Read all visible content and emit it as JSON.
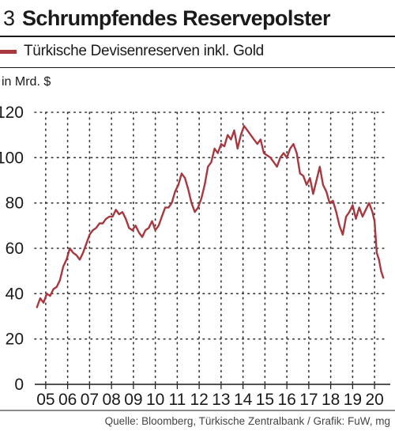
{
  "header": {
    "number": "3",
    "title": "Schrumpfendes Reservepolster"
  },
  "footer": {
    "source": "Quelle: Bloomberg, Türkische Zentralbank / Grafik: FuW, mg"
  },
  "colors": {
    "series": "#a8383f",
    "text": "#1a1a1a",
    "grid": "#333333"
  },
  "chart_data": {
    "type": "line",
    "title": "Schrumpfendes Reservepolster",
    "ylabel": "in Mrd. $",
    "ylim": [
      0,
      120
    ],
    "xlim": [
      2004.5,
      2020.5
    ],
    "yticks": [
      0,
      20,
      40,
      60,
      80,
      100,
      120
    ],
    "xticks": [
      {
        "x": 2005,
        "label": "05"
      },
      {
        "x": 2006,
        "label": "06"
      },
      {
        "x": 2007,
        "label": "07"
      },
      {
        "x": 2008,
        "label": "08"
      },
      {
        "x": 2009,
        "label": "09"
      },
      {
        "x": 2010,
        "label": "10"
      },
      {
        "x": 2011,
        "label": "11"
      },
      {
        "x": 2012,
        "label": "12"
      },
      {
        "x": 2013,
        "label": "13"
      },
      {
        "x": 2014,
        "label": "14"
      },
      {
        "x": 2015,
        "label": "15"
      },
      {
        "x": 2016,
        "label": "16"
      },
      {
        "x": 2017,
        "label": "17"
      },
      {
        "x": 2018,
        "label": "18"
      },
      {
        "x": 2019,
        "label": "19"
      },
      {
        "x": 2020,
        "label": "20"
      }
    ],
    "grid": true,
    "legend": "top-left",
    "series": [
      {
        "name": "Türkische Devisenreserven inkl. Gold",
        "x": [
          2004.6,
          2004.75,
          2004.9,
          2005.05,
          2005.2,
          2005.35,
          2005.5,
          2005.65,
          2005.8,
          2005.95,
          2006.1,
          2006.25,
          2006.4,
          2006.55,
          2006.7,
          2006.85,
          2007.0,
          2007.15,
          2007.3,
          2007.45,
          2007.6,
          2007.75,
          2007.9,
          2008.05,
          2008.2,
          2008.35,
          2008.5,
          2008.65,
          2008.8,
          2008.95,
          2009.1,
          2009.25,
          2009.4,
          2009.55,
          2009.7,
          2009.85,
          2010.0,
          2010.15,
          2010.3,
          2010.45,
          2010.6,
          2010.75,
          2010.9,
          2011.05,
          2011.2,
          2011.35,
          2011.5,
          2011.65,
          2011.8,
          2011.95,
          2012.1,
          2012.25,
          2012.4,
          2012.55,
          2012.7,
          2012.85,
          2013.0,
          2013.15,
          2013.3,
          2013.45,
          2013.6,
          2013.75,
          2013.9,
          2014.05,
          2014.2,
          2014.35,
          2014.5,
          2014.65,
          2014.8,
          2014.95,
          2015.1,
          2015.25,
          2015.4,
          2015.55,
          2015.7,
          2015.85,
          2016.0,
          2016.15,
          2016.3,
          2016.45,
          2016.6,
          2016.75,
          2016.9,
          2017.05,
          2017.2,
          2017.35,
          2017.5,
          2017.65,
          2017.8,
          2017.95,
          2018.1,
          2018.25,
          2018.4,
          2018.55,
          2018.7,
          2018.85,
          2019.0,
          2019.15,
          2019.3,
          2019.45,
          2019.6,
          2019.75,
          2019.9,
          2020.0,
          2020.1,
          2020.2,
          2020.3,
          2020.4
        ],
        "values": [
          34,
          38,
          36,
          40,
          39,
          42,
          43,
          46,
          52,
          55,
          60,
          58,
          57,
          55,
          58,
          62,
          66,
          68,
          69,
          71,
          71,
          73,
          74,
          74,
          77,
          75,
          76,
          73,
          69,
          68,
          70,
          67,
          65,
          68,
          69,
          72,
          68,
          70,
          74,
          78,
          78,
          80,
          85,
          88,
          93,
          91,
          86,
          80,
          76,
          78,
          82,
          88,
          96,
          98,
          104,
          102,
          106,
          105,
          110,
          108,
          112,
          104,
          110,
          114,
          112,
          110,
          108,
          106,
          108,
          102,
          101,
          100,
          98,
          96,
          100,
          102,
          100,
          104,
          106,
          102,
          93,
          92,
          88,
          91,
          84,
          90,
          96,
          88,
          85,
          80,
          81,
          76,
          70,
          66,
          74,
          76,
          79,
          73,
          78,
          74,
          77,
          80,
          76,
          72,
          58,
          55,
          50,
          47
        ]
      }
    ]
  }
}
